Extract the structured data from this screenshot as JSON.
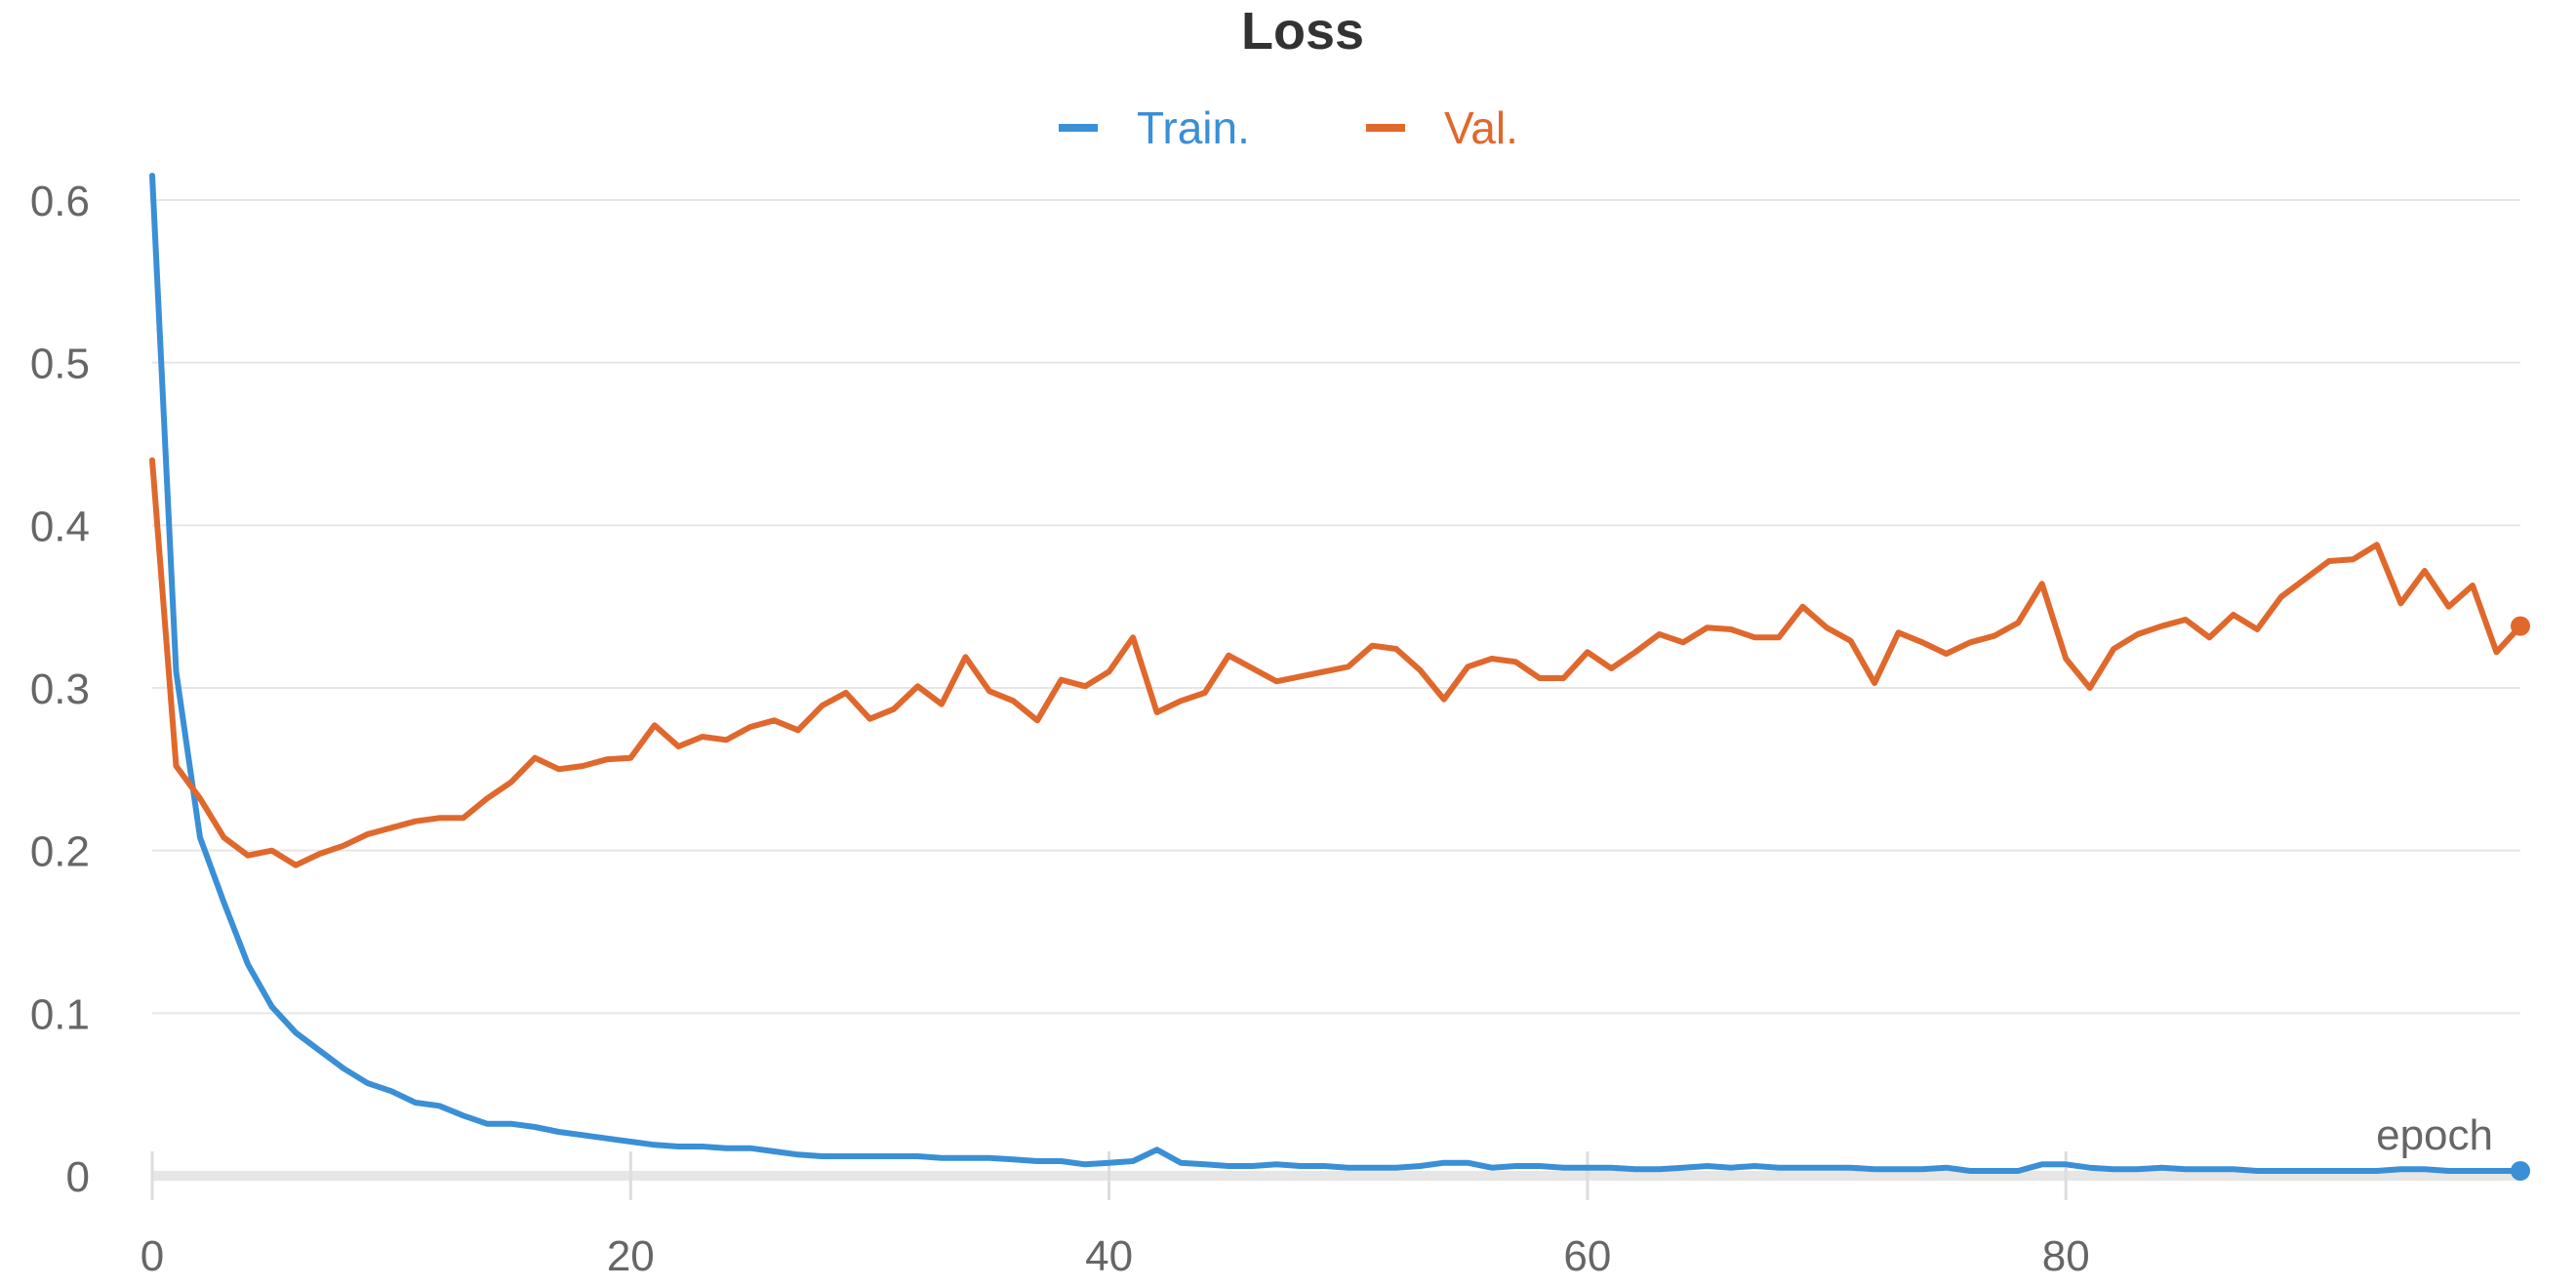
{
  "chart_data": {
    "type": "line",
    "title": "Loss",
    "xlabel": "epoch",
    "ylabel": "",
    "xlim": [
      0,
      99
    ],
    "ylim": [
      0,
      0.6
    ],
    "x_ticks": [
      0,
      20,
      40,
      60,
      80
    ],
    "y_ticks": [
      0,
      0.1,
      0.2,
      0.3,
      0.4,
      0.5,
      0.6
    ],
    "grid": true,
    "legend_position": "top-center",
    "series": [
      {
        "name": "Train.",
        "color": "#3a8fd6",
        "end_marker": true,
        "x": [
          0,
          1,
          2,
          3,
          4,
          5,
          6,
          7,
          8,
          9,
          10,
          11,
          12,
          13,
          14,
          15,
          16,
          17,
          18,
          19,
          20,
          21,
          22,
          23,
          24,
          25,
          26,
          27,
          28,
          29,
          30,
          31,
          32,
          33,
          34,
          35,
          36,
          37,
          38,
          39,
          40,
          41,
          42,
          43,
          44,
          45,
          46,
          47,
          48,
          49,
          50,
          51,
          52,
          53,
          54,
          55,
          56,
          57,
          58,
          59,
          60,
          61,
          62,
          63,
          64,
          65,
          66,
          67,
          68,
          69,
          70,
          71,
          72,
          73,
          74,
          75,
          76,
          77,
          78,
          79,
          80,
          81,
          82,
          83,
          84,
          85,
          86,
          87,
          88,
          89,
          90,
          91,
          92,
          93,
          94,
          95,
          96,
          97,
          98,
          99
        ],
        "values": [
          0.615,
          0.31,
          0.208,
          0.168,
          0.13,
          0.104,
          0.088,
          0.077,
          0.066,
          0.057,
          0.052,
          0.045,
          0.043,
          0.037,
          0.032,
          0.032,
          0.03,
          0.027,
          0.025,
          0.023,
          0.021,
          0.019,
          0.018,
          0.018,
          0.017,
          0.017,
          0.015,
          0.013,
          0.012,
          0.012,
          0.012,
          0.012,
          0.012,
          0.011,
          0.011,
          0.011,
          0.01,
          0.009,
          0.009,
          0.007,
          0.008,
          0.009,
          0.016,
          0.008,
          0.007,
          0.006,
          0.006,
          0.007,
          0.006,
          0.006,
          0.005,
          0.005,
          0.005,
          0.006,
          0.008,
          0.008,
          0.005,
          0.006,
          0.006,
          0.005,
          0.005,
          0.005,
          0.004,
          0.004,
          0.005,
          0.006,
          0.005,
          0.006,
          0.005,
          0.005,
          0.005,
          0.005,
          0.004,
          0.004,
          0.004,
          0.005,
          0.003,
          0.003,
          0.003,
          0.007,
          0.007,
          0.005,
          0.004,
          0.004,
          0.005,
          0.004,
          0.004,
          0.004,
          0.003,
          0.003,
          0.003,
          0.003,
          0.003,
          0.003,
          0.004,
          0.004,
          0.003,
          0.003,
          0.003,
          0.003
        ]
      },
      {
        "name": "Val.",
        "color": "#e0682c",
        "end_marker": true,
        "x": [
          0,
          1,
          2,
          3,
          4,
          5,
          6,
          7,
          8,
          9,
          10,
          11,
          12,
          13,
          14,
          15,
          16,
          17,
          18,
          19,
          20,
          21,
          22,
          23,
          24,
          25,
          26,
          27,
          28,
          29,
          30,
          31,
          32,
          33,
          34,
          35,
          36,
          37,
          38,
          39,
          40,
          41,
          42,
          43,
          44,
          45,
          46,
          47,
          48,
          49,
          50,
          51,
          52,
          53,
          54,
          55,
          56,
          57,
          58,
          59,
          60,
          61,
          62,
          63,
          64,
          65,
          66,
          67,
          68,
          69,
          70,
          71,
          72,
          73,
          74,
          75,
          76,
          77,
          78,
          79,
          80,
          81,
          82,
          83,
          84,
          85,
          86,
          87,
          88,
          89,
          90,
          91,
          92,
          93,
          94,
          95,
          96,
          97,
          98,
          99
        ],
        "values": [
          0.44,
          0.252,
          0.232,
          0.208,
          0.197,
          0.2,
          0.191,
          0.198,
          0.203,
          0.21,
          0.214,
          0.218,
          0.22,
          0.22,
          0.232,
          0.242,
          0.257,
          0.25,
          0.252,
          0.256,
          0.257,
          0.277,
          0.264,
          0.27,
          0.268,
          0.276,
          0.28,
          0.274,
          0.289,
          0.297,
          0.281,
          0.287,
          0.301,
          0.29,
          0.319,
          0.298,
          0.292,
          0.28,
          0.305,
          0.301,
          0.31,
          0.331,
          0.285,
          0.292,
          0.297,
          0.32,
          0.312,
          0.304,
          0.307,
          0.31,
          0.313,
          0.326,
          0.324,
          0.311,
          0.293,
          0.313,
          0.318,
          0.316,
          0.306,
          0.306,
          0.322,
          0.312,
          0.322,
          0.333,
          0.328,
          0.337,
          0.336,
          0.331,
          0.331,
          0.35,
          0.337,
          0.329,
          0.303,
          0.334,
          0.328,
          0.321,
          0.328,
          0.332,
          0.34,
          0.364,
          0.318,
          0.3,
          0.324,
          0.333,
          0.338,
          0.342,
          0.331,
          0.345,
          0.336,
          0.356,
          0.367,
          0.378,
          0.379,
          0.388,
          0.352,
          0.372,
          0.35,
          0.363,
          0.322,
          0.338
        ]
      }
    ]
  }
}
